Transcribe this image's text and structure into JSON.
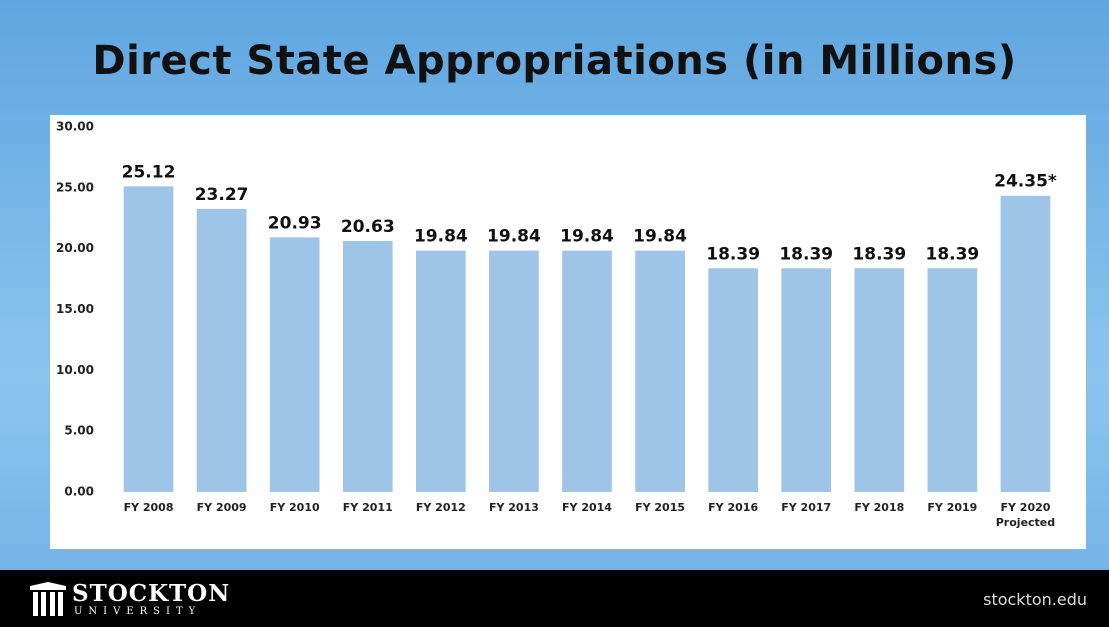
{
  "chart_data": {
    "type": "bar",
    "title": "Direct State Appropriations (in Millions)",
    "categories": [
      "FY 2008",
      "FY 2009",
      "FY 2010",
      "FY 2011",
      "FY 2012",
      "FY 2013",
      "FY 2014",
      "FY 2015",
      "FY 2016",
      "FY 2017",
      "FY 2018",
      "FY 2019",
      "FY 2020 Projected"
    ],
    "values": [
      25.12,
      23.27,
      20.93,
      20.63,
      19.84,
      19.84,
      19.84,
      19.84,
      18.39,
      18.39,
      18.39,
      18.39,
      24.35
    ],
    "value_labels": [
      "25.12",
      "23.27",
      "20.93",
      "20.63",
      "19.84",
      "19.84",
      "19.84",
      "19.84",
      "18.39",
      "18.39",
      "18.39",
      "18.39",
      "24.35*"
    ],
    "color": "#9ec5e8",
    "ylim": [
      0,
      30
    ],
    "yticks": [
      {
        "value": 0,
        "label": "0.00"
      },
      {
        "value": 5,
        "label": "5.00"
      },
      {
        "value": 10,
        "label": "10.00"
      },
      {
        "value": 15,
        "label": "15.00"
      },
      {
        "value": 20,
        "label": "20.00"
      },
      {
        "value": 25,
        "label": "25.00"
      },
      {
        "value": 30,
        "label": "30.00"
      }
    ],
    "grid": false
  },
  "footer": {
    "name": "STOCKTON",
    "subname": "UNIVERSITY",
    "website": "stockton.edu"
  }
}
